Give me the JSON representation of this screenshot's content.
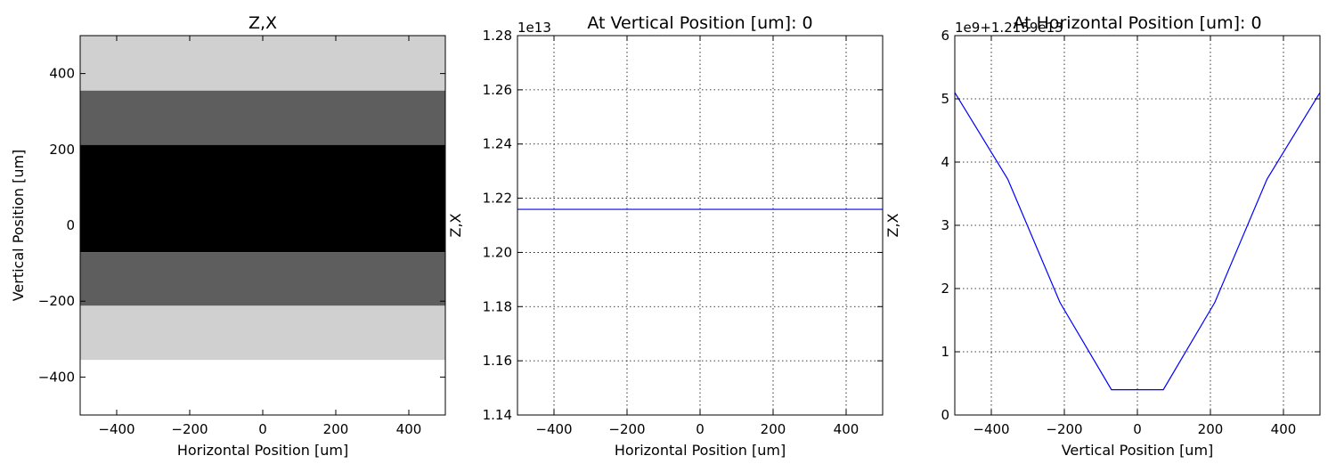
{
  "chart_data": [
    {
      "type": "heatmap",
      "title": "Z,X",
      "xlabel": "Horizontal Position [um]",
      "ylabel": "Vertical Position [um]",
      "xlim": [
        -500,
        500
      ],
      "ylim": [
        -500,
        500
      ],
      "xticks": [
        -400,
        -200,
        0,
        200,
        400
      ],
      "xtick_labels": [
        "−400",
        "−200",
        "0",
        "200",
        "400"
      ],
      "yticks": [
        -400,
        -200,
        0,
        200,
        400
      ],
      "ytick_labels": [
        "−400",
        "−200",
        "0",
        "200",
        "400"
      ],
      "grid": false,
      "colormap": "gray_r",
      "bands": [
        {
          "y0": 355,
          "y1": 500,
          "color": "#d0d0d0"
        },
        {
          "y0": 212,
          "y1": 355,
          "color": "#5e5e5e"
        },
        {
          "y0": -71,
          "y1": 212,
          "color": "#000000"
        },
        {
          "y0": -212,
          "y1": -71,
          "color": "#5e5e5e"
        },
        {
          "y0": -355,
          "y1": -212,
          "color": "#d0d0d0"
        },
        {
          "y0": -500,
          "y1": -355,
          "color": "#ffffff"
        }
      ]
    },
    {
      "type": "line",
      "title": "At Vertical Position [um]: 0",
      "xlabel": "Horizontal Position [um]",
      "ylabel": "Z,X",
      "offset_text": "1e13",
      "xlim": [
        -500,
        500
      ],
      "ylim": [
        1.14,
        1.28
      ],
      "xticks": [
        -400,
        -200,
        0,
        200,
        400
      ],
      "xtick_labels": [
        "−400",
        "−200",
        "0",
        "200",
        "400"
      ],
      "yticks": [
        1.14,
        1.16,
        1.18,
        1.2,
        1.22,
        1.24,
        1.26,
        1.28
      ],
      "ytick_labels": [
        "1.14",
        "1.16",
        "1.18",
        "1.20",
        "1.22",
        "1.24",
        "1.26",
        "1.28"
      ],
      "grid": true,
      "color": "#0000ff",
      "series": [
        {
          "x": [
            -500,
            500
          ],
          "y": [
            1.2159,
            1.2159
          ]
        }
      ]
    },
    {
      "type": "line",
      "title": "At Horizontal Position [um]: 0",
      "xlabel": "Vertical Position [um]",
      "ylabel": "Z,X",
      "offset_text": "1e9+1.2159e13",
      "xlim": [
        -500,
        500
      ],
      "ylim": [
        0,
        6
      ],
      "xticks": [
        -400,
        -200,
        0,
        200,
        400
      ],
      "xtick_labels": [
        "−400",
        "−200",
        "0",
        "200",
        "400"
      ],
      "yticks": [
        0,
        1,
        2,
        3,
        4,
        5,
        6
      ],
      "ytick_labels": [
        "0",
        "1",
        "2",
        "3",
        "4",
        "5",
        "6"
      ],
      "grid": true,
      "color": "#0000ff",
      "series": [
        {
          "x": [
            -500,
            -355,
            -212,
            -71,
            71,
            212,
            355,
            500
          ],
          "y": [
            5.1,
            3.73,
            1.78,
            0.4,
            0.4,
            1.78,
            3.73,
            5.1
          ]
        }
      ]
    }
  ]
}
